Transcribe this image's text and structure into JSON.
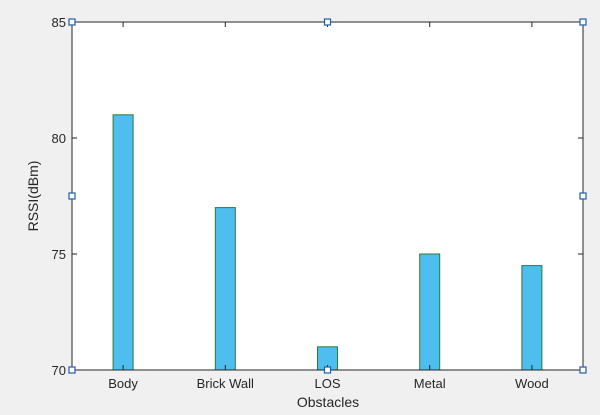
{
  "chart_data": {
    "type": "bar",
    "title": "",
    "xlabel": "Obstacles",
    "ylabel": "RSSI(dBm)",
    "categories": [
      "Body",
      "Brick Wall",
      "LOS",
      "Metal",
      "Wood"
    ],
    "values": [
      81,
      77,
      71,
      75,
      74.5
    ],
    "ylim": [
      70,
      85
    ],
    "yticks": [
      70,
      75,
      80,
      85
    ],
    "grid": false,
    "legend": "none",
    "colors": {
      "bar_fill": "#4DBEEE",
      "bar_edge": "#2b7a3a",
      "axes_bg": "#ffffff",
      "figure_bg": "#f0f0f0",
      "axis": "#262626",
      "handle": "#1f5fa8"
    }
  }
}
